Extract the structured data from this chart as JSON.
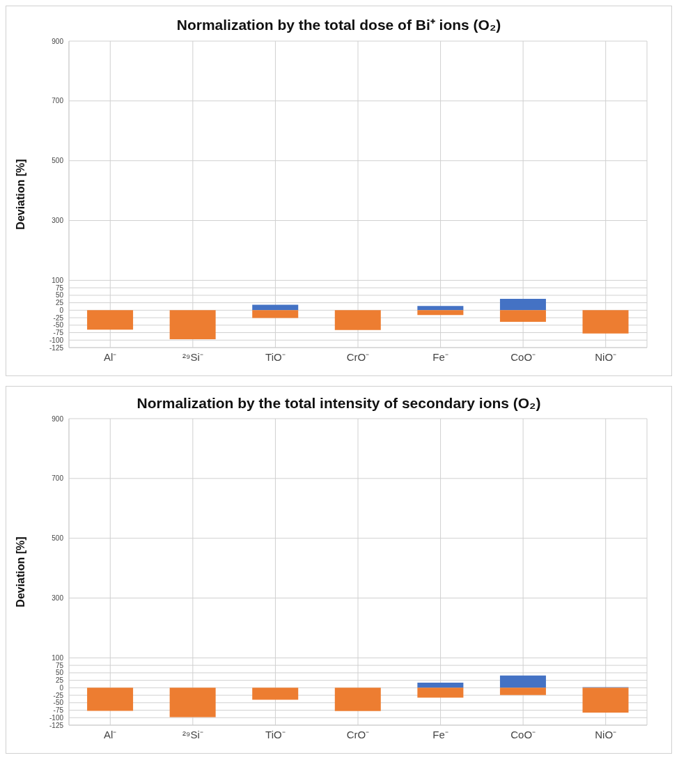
{
  "chart_data": [
    {
      "type": "bar",
      "title": "Normalization by the total dose of Bi⁺ ions (O₂)",
      "ylabel": "Deviation [%]",
      "categories": [
        "Al⁻",
        "²⁹Si⁻",
        "TiO⁻",
        "CrO⁻",
        "Fe⁻",
        "CoO⁻",
        "NiO⁻"
      ],
      "stacked": true,
      "grid": true,
      "ylim": [
        -125,
        900
      ],
      "yticks": [
        -125,
        -100,
        -75,
        -50,
        -25,
        0,
        25,
        50,
        75,
        100,
        300,
        500,
        700,
        900
      ],
      "series": [
        {
          "color": "#4472c4",
          "values": [
            null,
            null,
            18,
            null,
            14,
            38,
            null
          ]
        },
        {
          "color": "#ed7d31",
          "values": [
            -65,
            -97,
            -26,
            -66,
            -16,
            -39,
            -78
          ]
        }
      ]
    },
    {
      "type": "bar",
      "title": "Normalization by the total intensity of secondary ions (O₂)",
      "ylabel": "Deviation [%]",
      "categories": [
        "Al⁻",
        "²⁹Si⁻",
        "TiO⁻",
        "CrO⁻",
        "Fe⁻",
        "CoO⁻",
        "NiO⁻"
      ],
      "stacked": true,
      "grid": true,
      "ylim": [
        -125,
        900
      ],
      "yticks": [
        -125,
        -100,
        -75,
        -50,
        -25,
        0,
        25,
        50,
        75,
        100,
        300,
        500,
        700,
        900
      ],
      "series": [
        {
          "color": "#4472c4",
          "values": [
            null,
            null,
            null,
            null,
            17,
            41,
            2
          ]
        },
        {
          "color": "#ed7d31",
          "values": [
            -77,
            -98,
            -40,
            -78,
            -33,
            -24,
            -83
          ]
        }
      ]
    }
  ]
}
